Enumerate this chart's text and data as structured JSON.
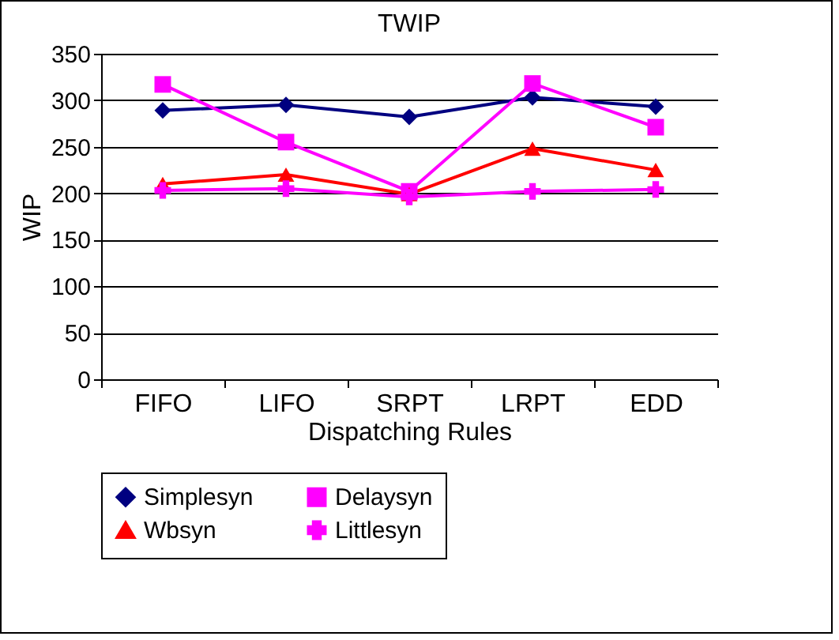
{
  "chart_data": {
    "type": "line",
    "title": "TWIP",
    "xlabel": "Dispatching Rules",
    "ylabel": "WIP",
    "categories": [
      "FIFO",
      "LIFO",
      "SRPT",
      "LRPT",
      "EDD"
    ],
    "series": [
      {
        "name": "Simplesyn",
        "color": "#000080",
        "marker": "diamond",
        "values": [
          289,
          295,
          282,
          303,
          293
        ]
      },
      {
        "name": "Delaysyn",
        "color": "#ff00ff",
        "marker": "square",
        "values": [
          317,
          255,
          202,
          318,
          271
        ]
      },
      {
        "name": "Wbsyn",
        "color": "#ff0000",
        "marker": "triangle",
        "values": [
          210,
          220,
          199,
          248,
          225
        ]
      },
      {
        "name": "Littlesyn",
        "color": "#ff00ff",
        "marker": "cross",
        "values": [
          203,
          205,
          196,
          202,
          204
        ]
      }
    ],
    "ylim": [
      0,
      350
    ],
    "yticks": [
      0,
      50,
      100,
      150,
      200,
      250,
      300,
      350
    ],
    "grid": "y",
    "legend": "bottom",
    "line_style": "solid"
  }
}
